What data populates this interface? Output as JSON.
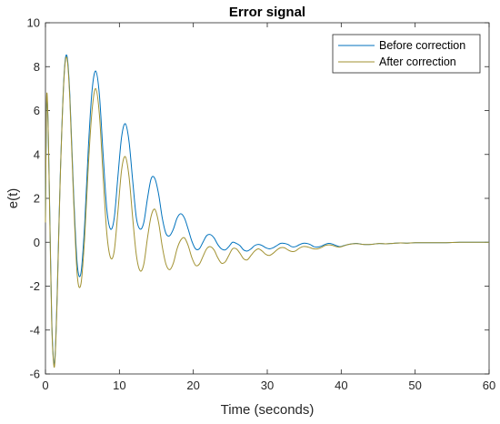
{
  "chart_data": {
    "type": "line",
    "title": "Error signal",
    "xlabel": "Time (seconds)",
    "ylabel": "e(t)",
    "xlim": [
      0,
      60
    ],
    "ylim": [
      -6,
      10
    ],
    "x_ticks": [
      0,
      10,
      20,
      30,
      40,
      50,
      60
    ],
    "y_ticks": [
      -6,
      -4,
      -2,
      0,
      2,
      4,
      6,
      8,
      10
    ],
    "grid": false,
    "legend_position": "top-right",
    "series": [
      {
        "name": "Before correction",
        "color": "#0072BD",
        "x": [
          0,
          0.15,
          0.35,
          0.6,
          0.85,
          1.1,
          1.3,
          1.6,
          2.0,
          2.5,
          2.9,
          3.3,
          3.8,
          4.3,
          4.8,
          5.3,
          5.8,
          6.3,
          6.8,
          7.3,
          7.8,
          8.3,
          8.8,
          9.3,
          9.8,
          10.3,
          10.8,
          11.3,
          11.8,
          12.3,
          12.8,
          13.3,
          13.8,
          14.3,
          14.8,
          15.3,
          15.8,
          16.3,
          16.8,
          17.3,
          17.8,
          18.3,
          18.8,
          19.3,
          19.8,
          20.3,
          20.8,
          21.3,
          21.8,
          22.3,
          22.8,
          23.3,
          23.8,
          24.3,
          24.8,
          25.3,
          25.8,
          26.3,
          26.8,
          27.3,
          27.8,
          28.3,
          28.8,
          29.3,
          29.8,
          30.3,
          30.8,
          31.3,
          31.8,
          32.3,
          32.8,
          33.3,
          33.8,
          34.3,
          34.8,
          35.3,
          35.8,
          36.3,
          36.8,
          37.3,
          37.8,
          38.3,
          38.8,
          39.3,
          39.8,
          40.3,
          41,
          42,
          43,
          44,
          45,
          46,
          47,
          48,
          49,
          50,
          52,
          54,
          56,
          58,
          60
        ],
        "values": [
          1,
          6.2,
          5.5,
          1.0,
          -3.5,
          -5.4,
          -5.2,
          -2.2,
          3.0,
          7.5,
          8.5,
          6.7,
          2.3,
          -1.0,
          -1.4,
          0.8,
          4.3,
          6.9,
          7.8,
          6.7,
          4.0,
          1.5,
          0.6,
          1.1,
          3.0,
          4.8,
          5.4,
          4.6,
          2.8,
          1.1,
          0.6,
          0.9,
          2.0,
          2.9,
          2.9,
          2.2,
          1.1,
          0.4,
          0.3,
          0.6,
          1.1,
          1.3,
          1.1,
          0.6,
          0.05,
          -0.3,
          -0.3,
          0.0,
          0.3,
          0.35,
          0.2,
          -0.1,
          -0.3,
          -0.35,
          -0.2,
          0.0,
          -0.05,
          -0.15,
          -0.35,
          -0.4,
          -0.3,
          -0.15,
          -0.1,
          -0.15,
          -0.25,
          -0.3,
          -0.25,
          -0.15,
          -0.05,
          -0.05,
          -0.1,
          -0.2,
          -0.2,
          -0.12,
          -0.05,
          -0.05,
          -0.1,
          -0.2,
          -0.22,
          -0.18,
          -0.1,
          -0.05,
          -0.08,
          -0.15,
          -0.2,
          -0.16,
          -0.1,
          -0.05,
          -0.1,
          -0.1,
          -0.06,
          -0.07,
          -0.05,
          -0.03,
          -0.04,
          -0.02,
          -0.02,
          -0.02,
          0.0,
          0.0,
          0.0
        ]
      },
      {
        "name": "After correction",
        "color": "#A29232",
        "x": [
          0,
          0.15,
          0.35,
          0.6,
          0.85,
          1.1,
          1.3,
          1.6,
          2.0,
          2.5,
          2.9,
          3.3,
          3.8,
          4.3,
          4.8,
          5.3,
          5.8,
          6.3,
          6.8,
          7.3,
          7.8,
          8.3,
          8.8,
          9.3,
          9.8,
          10.3,
          10.8,
          11.3,
          11.8,
          12.3,
          12.8,
          13.3,
          13.8,
          14.3,
          14.8,
          15.3,
          15.8,
          16.3,
          16.8,
          17.3,
          17.8,
          18.3,
          18.8,
          19.3,
          19.8,
          20.3,
          20.8,
          21.3,
          21.8,
          22.3,
          22.8,
          23.3,
          23.8,
          24.3,
          24.8,
          25.3,
          25.8,
          26.3,
          26.8,
          27.3,
          27.8,
          28.3,
          28.8,
          29.3,
          29.8,
          30.3,
          30.8,
          31.3,
          31.8,
          32.3,
          32.8,
          33.3,
          33.8,
          34.3,
          34.8,
          35.3,
          35.8,
          36.3,
          36.8,
          37.3,
          37.8,
          38.3,
          38.8,
          39.3,
          39.8,
          40.3,
          41,
          42,
          43,
          44,
          45,
          46,
          47,
          48,
          49,
          50,
          52,
          54,
          56,
          58,
          60
        ],
        "values": [
          0.9,
          6.5,
          5.5,
          0.8,
          -3.7,
          -5.5,
          -5.3,
          -2.4,
          2.9,
          7.4,
          8.4,
          6.5,
          2.0,
          -1.5,
          -1.9,
          0.2,
          3.5,
          6.0,
          7.0,
          5.8,
          3.0,
          0.4,
          -0.7,
          -0.4,
          1.4,
          3.3,
          3.9,
          3.0,
          1.1,
          -0.6,
          -1.3,
          -1.0,
          0.2,
          1.2,
          1.5,
          0.9,
          -0.2,
          -1.0,
          -1.25,
          -0.95,
          -0.3,
          0.1,
          0.2,
          -0.15,
          -0.7,
          -1.05,
          -1.0,
          -0.65,
          -0.3,
          -0.2,
          -0.35,
          -0.7,
          -0.95,
          -0.9,
          -0.6,
          -0.3,
          -0.3,
          -0.5,
          -0.75,
          -0.8,
          -0.6,
          -0.4,
          -0.3,
          -0.4,
          -0.55,
          -0.6,
          -0.5,
          -0.35,
          -0.25,
          -0.25,
          -0.35,
          -0.42,
          -0.4,
          -0.28,
          -0.2,
          -0.2,
          -0.25,
          -0.3,
          -0.3,
          -0.24,
          -0.15,
          -0.12,
          -0.14,
          -0.2,
          -0.22,
          -0.17,
          -0.1,
          -0.06,
          -0.1,
          -0.1,
          -0.06,
          -0.07,
          -0.05,
          -0.03,
          -0.04,
          -0.02,
          -0.02,
          -0.02,
          0.0,
          0.0,
          0.0
        ]
      }
    ]
  }
}
